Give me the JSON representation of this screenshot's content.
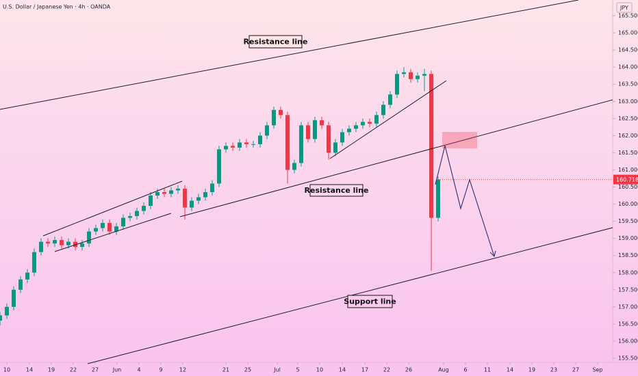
{
  "chart_data": {
    "type": "candlestick",
    "title": "U.S. Dollar / Japanese Yen · 4h · OANDA",
    "currency": "JPY",
    "x": [
      0,
      1,
      2,
      3,
      4,
      5,
      6,
      7,
      8,
      9,
      10,
      11,
      12,
      13,
      14,
      15,
      16,
      17,
      18,
      19,
      20,
      21,
      22,
      23,
      24,
      25,
      26,
      27,
      28,
      29,
      30,
      31,
      32,
      33,
      34,
      35,
      36,
      37,
      38,
      39,
      40,
      41,
      42,
      43,
      44,
      45,
      46,
      47,
      48,
      49,
      50,
      51,
      52,
      53,
      54,
      55,
      56,
      57,
      58,
      59,
      60,
      61,
      62,
      63,
      64
    ],
    "open": [
      156.6,
      156.75,
      157.0,
      157.5,
      157.8,
      158.0,
      158.6,
      158.9,
      158.85,
      158.95,
      158.8,
      158.9,
      158.75,
      158.85,
      159.2,
      159.3,
      159.45,
      159.2,
      159.35,
      159.6,
      159.65,
      159.8,
      159.95,
      160.25,
      160.35,
      160.3,
      160.4,
      160.45,
      159.9,
      160.1,
      160.2,
      160.35,
      160.6,
      161.6,
      161.7,
      161.65,
      161.8,
      161.75,
      161.75,
      162.0,
      162.3,
      162.75,
      162.6,
      161.0,
      161.2,
      162.3,
      161.9,
      162.45,
      162.3,
      161.5,
      161.8,
      162.1,
      162.2,
      162.3,
      162.4,
      162.35,
      162.6,
      162.9,
      163.2,
      163.8,
      163.85,
      163.65,
      163.75,
      163.8,
      159.6
    ],
    "high": [
      156.85,
      157.1,
      157.6,
      157.9,
      158.1,
      158.7,
      159.0,
      159.0,
      159.05,
      159.05,
      159.0,
      159.0,
      158.95,
      159.3,
      159.4,
      159.55,
      159.55,
      159.45,
      159.7,
      159.75,
      159.9,
      160.05,
      160.35,
      160.45,
      160.45,
      160.5,
      160.55,
      160.55,
      160.2,
      160.3,
      160.45,
      160.7,
      161.7,
      161.8,
      161.8,
      161.9,
      161.9,
      161.85,
      162.1,
      162.4,
      162.85,
      162.85,
      162.7,
      161.3,
      162.4,
      162.4,
      162.55,
      162.55,
      162.4,
      161.9,
      162.2,
      162.3,
      162.4,
      162.5,
      162.5,
      162.7,
      163.0,
      163.3,
      163.9,
      164.0,
      163.95,
      163.85,
      163.95,
      163.9,
      160.8
    ],
    "low": [
      156.45,
      156.65,
      156.9,
      157.4,
      157.7,
      157.9,
      158.5,
      158.75,
      158.75,
      158.7,
      158.7,
      158.65,
      158.65,
      158.75,
      159.1,
      159.2,
      159.1,
      159.1,
      159.25,
      159.5,
      159.55,
      159.7,
      159.85,
      160.15,
      160.2,
      160.2,
      160.3,
      159.55,
      159.8,
      160.0,
      160.1,
      160.25,
      160.5,
      161.5,
      161.55,
      161.55,
      161.65,
      161.65,
      161.65,
      161.9,
      162.2,
      162.5,
      160.6,
      160.9,
      161.1,
      161.8,
      161.8,
      162.2,
      161.3,
      161.4,
      161.7,
      162.0,
      162.1,
      162.2,
      162.25,
      162.25,
      162.5,
      162.8,
      163.1,
      163.7,
      163.55,
      163.55,
      163.3,
      158.05,
      159.5
    ],
    "close": [
      156.75,
      157.0,
      157.5,
      157.8,
      158.0,
      158.6,
      158.9,
      158.85,
      158.95,
      158.8,
      158.9,
      158.75,
      158.85,
      159.2,
      159.3,
      159.45,
      159.2,
      159.35,
      159.6,
      159.65,
      159.8,
      159.95,
      160.25,
      160.35,
      160.3,
      160.4,
      160.45,
      159.9,
      160.1,
      160.2,
      160.35,
      160.6,
      161.6,
      161.7,
      161.65,
      161.8,
      161.75,
      161.75,
      162.0,
      162.3,
      162.75,
      162.6,
      161.0,
      161.2,
      162.3,
      161.9,
      162.45,
      162.3,
      161.5,
      161.8,
      162.1,
      162.2,
      162.3,
      162.4,
      162.35,
      162.6,
      162.9,
      163.2,
      163.8,
      163.85,
      163.65,
      163.75,
      163.8,
      159.6,
      160.718
    ],
    "up_color": "#089981",
    "down_color": "#f23645",
    "grid": false,
    "xlim": [
      0,
      89.5
    ],
    "ylim": [
      155.38,
      165.96
    ],
    "xticks": [
      {
        "value": 1.0,
        "label": "10"
      },
      {
        "value": 4.3,
        "label": "14"
      },
      {
        "value": 7.5,
        "label": "19"
      },
      {
        "value": 10.7,
        "label": "22"
      },
      {
        "value": 13.9,
        "label": "27"
      },
      {
        "value": 17.1,
        "label": "Jun"
      },
      {
        "value": 20.3,
        "label": "4"
      },
      {
        "value": 23.5,
        "label": "9"
      },
      {
        "value": 26.7,
        "label": "12"
      },
      {
        "value": 33.0,
        "label": "21"
      },
      {
        "value": 36.2,
        "label": "25"
      },
      {
        "value": 40.5,
        "label": "Jul"
      },
      {
        "value": 43.5,
        "label": "5"
      },
      {
        "value": 46.7,
        "label": "10"
      },
      {
        "value": 50.0,
        "label": "14"
      },
      {
        "value": 53.3,
        "label": "17"
      },
      {
        "value": 56.5,
        "label": "22"
      },
      {
        "value": 59.7,
        "label": "26"
      },
      {
        "value": 64.8,
        "label": "Aug"
      },
      {
        "value": 68.0,
        "label": "6"
      },
      {
        "value": 71.2,
        "label": "11"
      },
      {
        "value": 74.5,
        "label": "14"
      },
      {
        "value": 77.7,
        "label": "19"
      },
      {
        "value": 80.9,
        "label": "23"
      },
      {
        "value": 84.1,
        "label": "27"
      },
      {
        "value": 87.3,
        "label": "Sep"
      }
    ],
    "yticks": [
      {
        "value": 155.5,
        "label": "155.500"
      },
      {
        "value": 156.0,
        "label": "156.000"
      },
      {
        "value": 156.5,
        "label": "156.500"
      },
      {
        "value": 157.0,
        "label": "157.000"
      },
      {
        "value": 157.5,
        "label": "157.500"
      },
      {
        "value": 158.0,
        "label": "158.000"
      },
      {
        "value": 158.5,
        "label": "158.500"
      },
      {
        "value": 159.0,
        "label": "159.000"
      },
      {
        "value": 159.5,
        "label": "159.500"
      },
      {
        "value": 160.0,
        "label": "160.000"
      },
      {
        "value": 160.5,
        "label": "160.500"
      },
      {
        "value": 161.0,
        "label": "161.000"
      },
      {
        "value": 161.5,
        "label": "161.500"
      },
      {
        "value": 162.0,
        "label": "162.000"
      },
      {
        "value": 162.5,
        "label": "162.500"
      },
      {
        "value": 163.0,
        "label": "163.000"
      },
      {
        "value": 163.5,
        "label": "163.500"
      },
      {
        "value": 164.0,
        "label": "164.000"
      },
      {
        "value": 164.5,
        "label": "164.500"
      },
      {
        "value": 165.0,
        "label": "165.000"
      },
      {
        "value": 165.5,
        "label": "165.500"
      }
    ],
    "annotations": [
      "Resistance line",
      "Resistance line",
      "Support line"
    ]
  }
}
